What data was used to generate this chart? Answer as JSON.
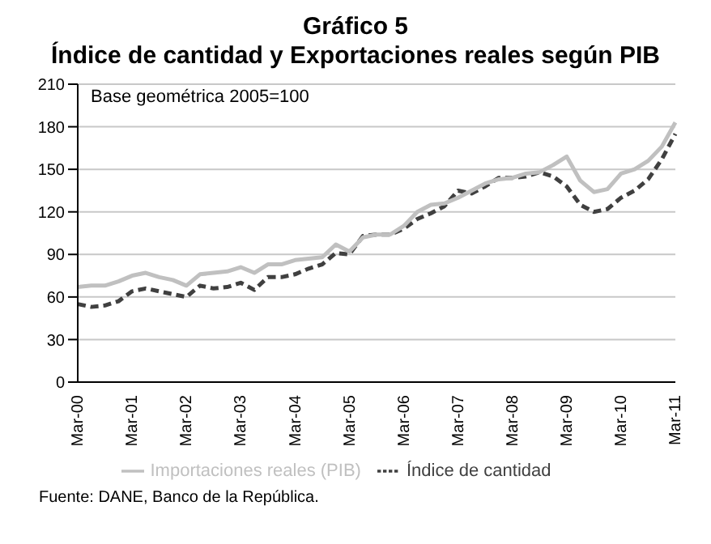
{
  "chart_data": {
    "type": "line",
    "title": "Gráfico 5",
    "subtitle": "Índice de cantidad y Exportaciones reales según PIB",
    "categories": [
      "Mar-00",
      null,
      null,
      null,
      "Mar-01",
      null,
      null,
      null,
      "Mar-02",
      null,
      null,
      null,
      "Mar-03",
      null,
      null,
      null,
      "Mar-04",
      null,
      null,
      null,
      "Mar-05",
      null,
      null,
      null,
      "Mar-06",
      null,
      null,
      null,
      "Mar-07",
      null,
      null,
      null,
      "Mar-08",
      null,
      null,
      null,
      "Mar-09",
      null,
      null,
      null,
      "Mar-10",
      null,
      null,
      null,
      "Mar-11"
    ],
    "series": [
      {
        "name": "Índice de cantidad",
        "color": "#404040",
        "line_style": "dashed",
        "values": [
          55,
          53,
          54,
          57,
          64,
          66,
          64,
          62,
          60,
          68,
          66,
          67,
          70,
          65,
          74,
          74,
          76,
          80,
          83,
          91,
          90,
          103,
          104,
          104,
          108,
          115,
          119,
          124,
          135,
          133,
          138,
          144,
          144,
          145,
          148,
          145,
          138,
          125,
          120,
          122,
          130,
          135,
          143,
          157,
          175
        ]
      },
      {
        "name": "Importaciones reales (PIB)",
        "color": "#c0c0c0",
        "line_style": "solid",
        "values": [
          67,
          68,
          68,
          71,
          75,
          77,
          74,
          72,
          68,
          76,
          77,
          78,
          81,
          77,
          83,
          83,
          86,
          87,
          88,
          97,
          92,
          102,
          104,
          104,
          110,
          120,
          125,
          126,
          130,
          135,
          140,
          143,
          144,
          147,
          148,
          153,
          159,
          142,
          134,
          136,
          147,
          150,
          156,
          166,
          183
        ]
      }
    ],
    "ylim": [
      0,
      210
    ],
    "yticks": [
      0,
      30,
      60,
      90,
      120,
      150,
      180,
      210
    ],
    "grid": "y",
    "legend": "bottom",
    "marker": "none",
    "annotations": [
      "Base geométrica 2005=100",
      "Fuente: DANE, Banco de la República."
    ]
  }
}
